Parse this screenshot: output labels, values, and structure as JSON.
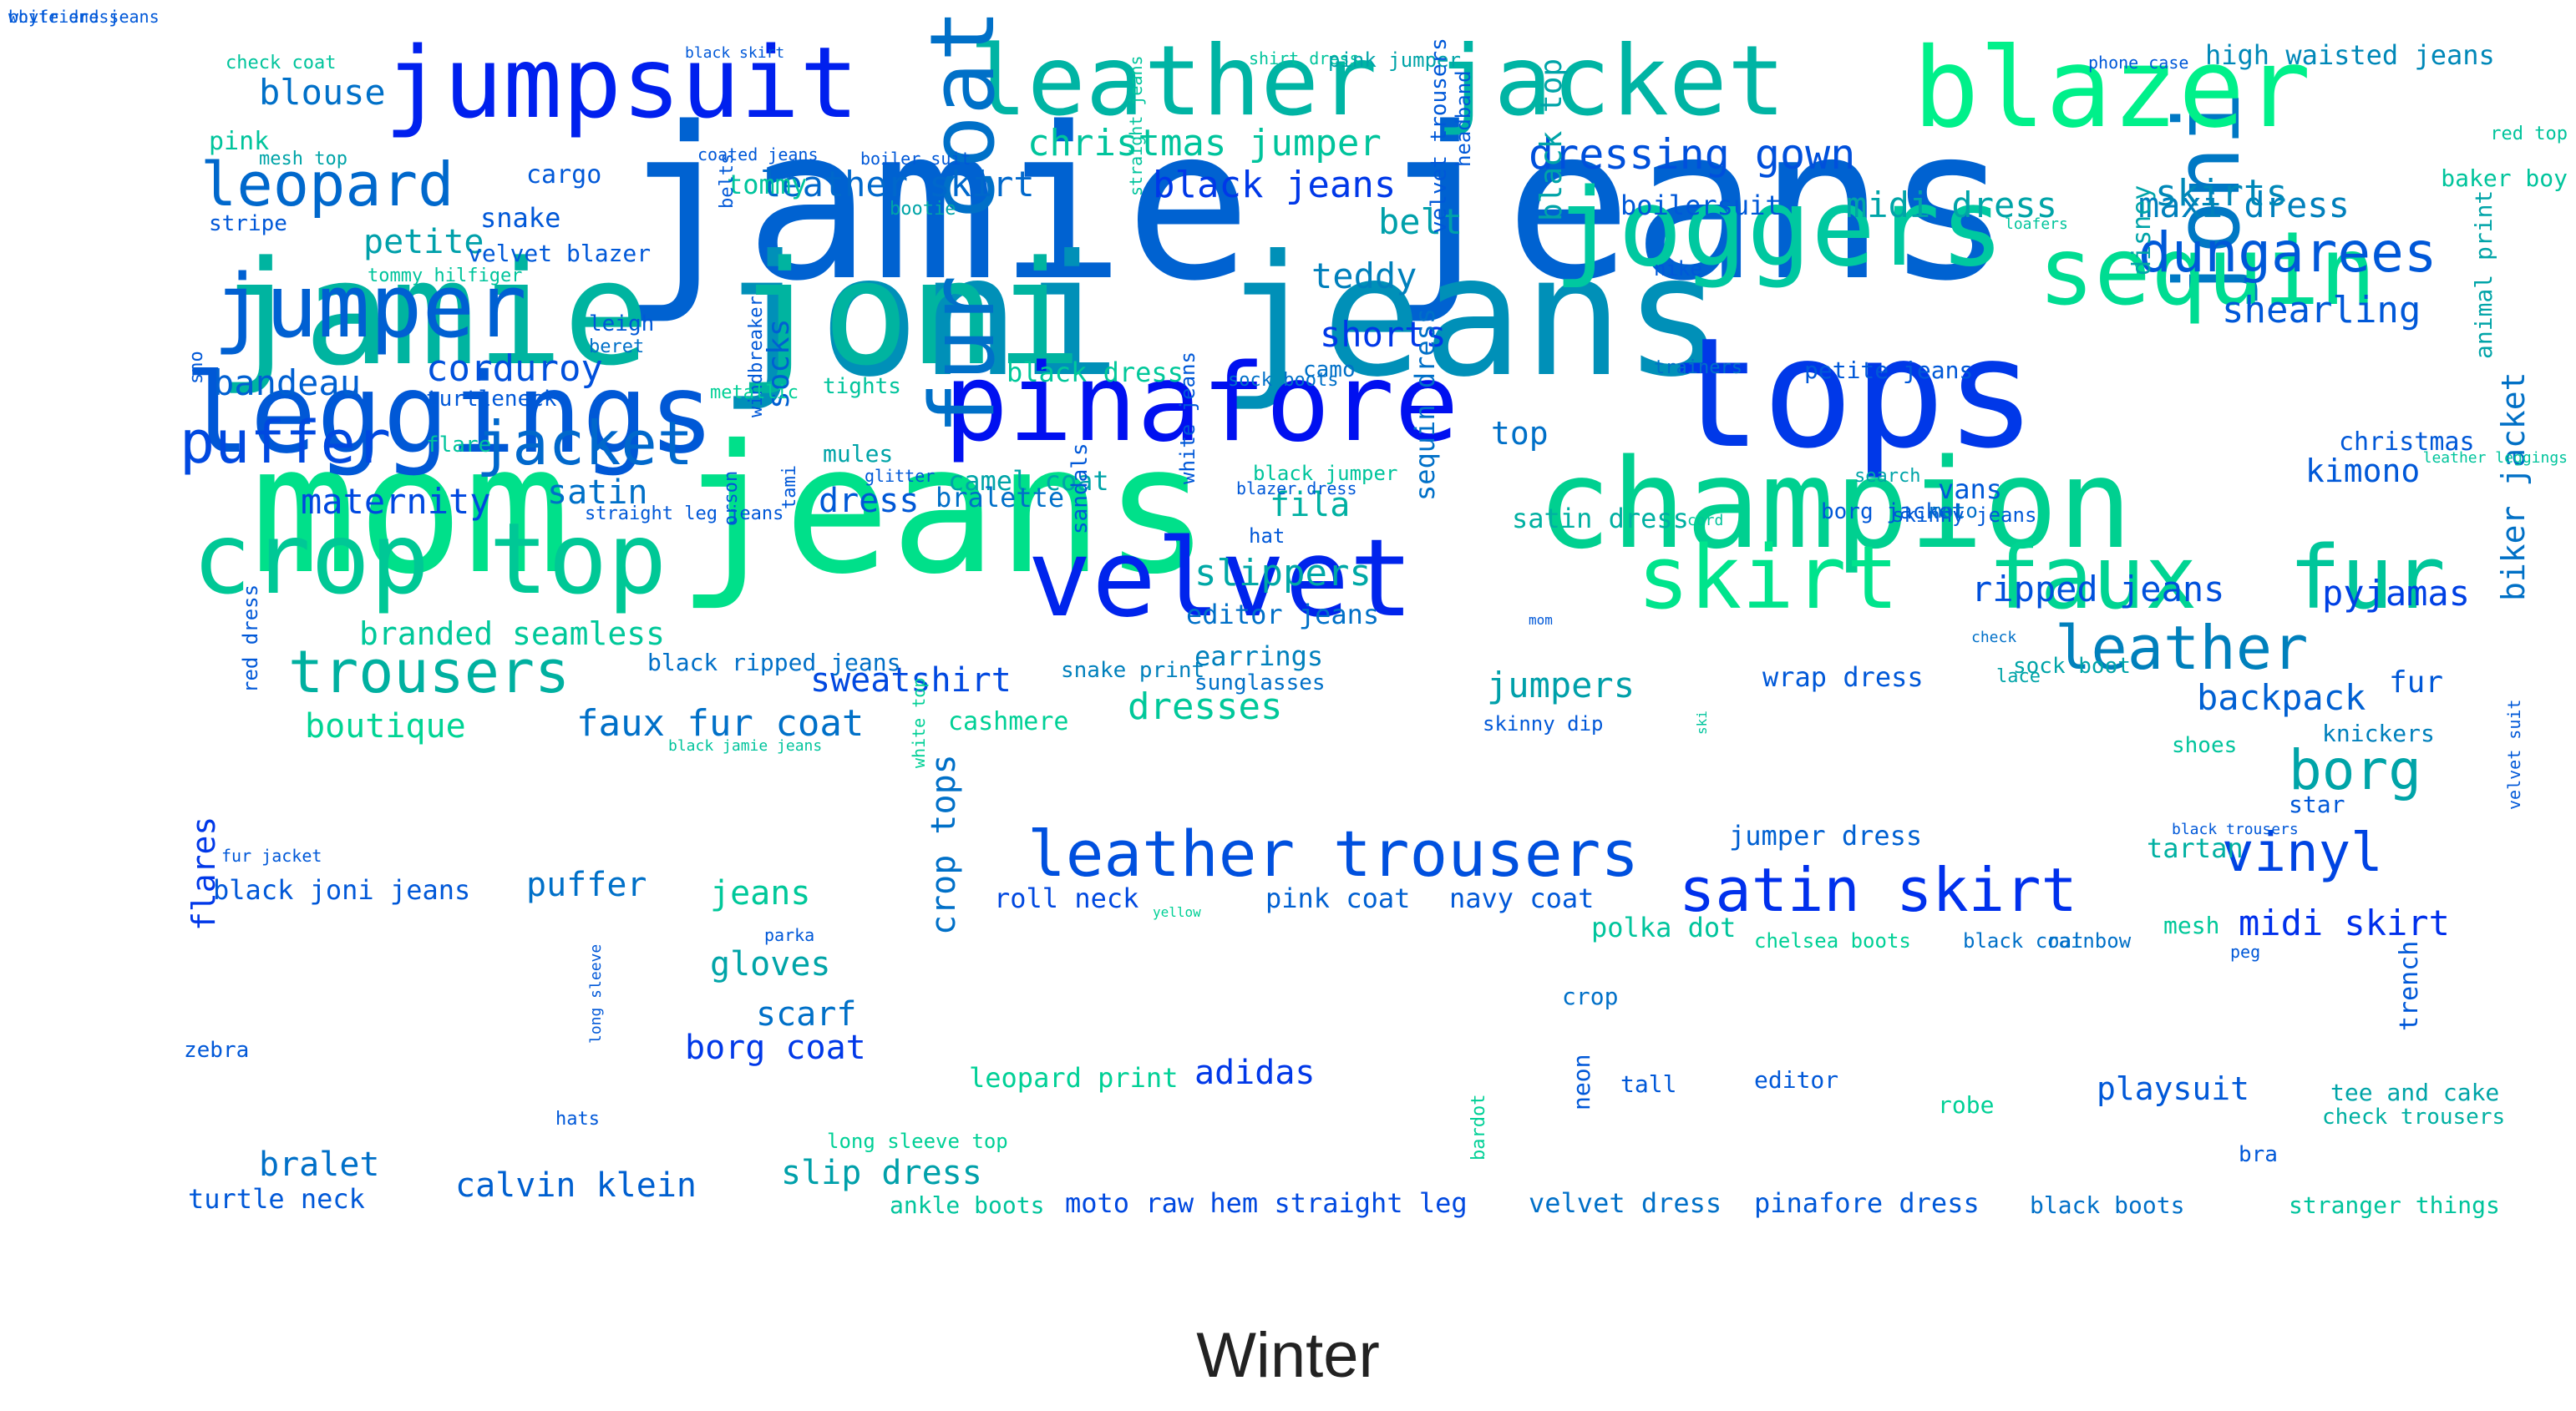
{
  "caption": "Winter",
  "words": [
    {
      "text": "jamie jeans",
      "color": "#0062d1"
    },
    {
      "text": "mom jeans",
      "color": "#00e08a"
    },
    {
      "text": "joni jeans",
      "color": "#0090b8"
    },
    {
      "text": "jamie joni",
      "color": "#00b4a0"
    },
    {
      "text": "tops",
      "color": "#0038e8"
    },
    {
      "text": "champion",
      "color": "#00d090"
    },
    {
      "text": "pinafore",
      "color": "#0010f0"
    },
    {
      "text": "leggings",
      "color": "#0058d6"
    },
    {
      "text": "velvet",
      "color": "#0024ec"
    },
    {
      "text": "crop top",
      "color": "#00c896"
    },
    {
      "text": "joni",
      "color": "#0078c4"
    },
    {
      "text": "blazer",
      "color": "#00f08a"
    },
    {
      "text": "joggers",
      "color": "#00c8a0"
    },
    {
      "text": "sequin",
      "color": "#00dc92"
    },
    {
      "text": "leather jacket",
      "color": "#00b4a4"
    },
    {
      "text": "jumpsuit",
      "color": "#0020ee"
    },
    {
      "text": "fur coat",
      "color": "#0070c8"
    },
    {
      "text": "skirt",
      "color": "#00e48c"
    },
    {
      "text": "faux",
      "color": "#00d492"
    },
    {
      "text": "fur",
      "color": "#00c69a"
    },
    {
      "text": "leather trousers",
      "color": "#0050de"
    },
    {
      "text": "jumper",
      "color": "#0060d2"
    },
    {
      "text": "satin skirt",
      "color": "#0030ec"
    },
    {
      "text": "leopard",
      "color": "#0068cc"
    },
    {
      "text": "leather",
      "color": "#0080bc"
    },
    {
      "text": "trousers",
      "color": "#00b0a0"
    },
    {
      "text": "jacket",
      "color": "#0068cc"
    },
    {
      "text": "puffer",
      "color": "#0048e0"
    },
    {
      "text": "dungarees",
      "color": "#0058d8"
    },
    {
      "text": "vinyl",
      "color": "#0044e2"
    },
    {
      "text": "borg",
      "color": "#00a4a8"
    },
    {
      "text": "dressing gown",
      "color": "#0050dc"
    },
    {
      "text": "christmas jumper",
      "color": "#00c49c"
    },
    {
      "text": "midi dress",
      "color": "#00a4a8"
    },
    {
      "text": "maxi dress",
      "color": "#0080bc"
    },
    {
      "text": "high waisted jeans",
      "color": "#0088b8"
    },
    {
      "text": "black jeans",
      "color": "#0038e8"
    },
    {
      "text": "leather skirt",
      "color": "#0068cc"
    },
    {
      "text": "shearling",
      "color": "#0058d8"
    },
    {
      "text": "kimono",
      "color": "#0058d8"
    },
    {
      "text": "skirts",
      "color": "#0088b8"
    },
    {
      "text": "ripped jeans",
      "color": "#0050dc"
    },
    {
      "text": "pyjamas",
      "color": "#0040e4"
    },
    {
      "text": "backpack",
      "color": "#0060d2"
    },
    {
      "text": "midi skirt",
      "color": "#0030ec"
    },
    {
      "text": "biker jacket",
      "color": "#0070c6"
    },
    {
      "text": "corduroy",
      "color": "#0050dc"
    },
    {
      "text": "maternity",
      "color": "#0048e0"
    },
    {
      "text": "bandeau",
      "color": "#0060d2"
    },
    {
      "text": "blouse",
      "color": "#0070c8"
    },
    {
      "text": "petite",
      "color": "#00a0aa"
    },
    {
      "text": "branded seamless",
      "color": "#00c89a"
    },
    {
      "text": "boutique",
      "color": "#00d494"
    },
    {
      "text": "faux fur coat",
      "color": "#0070c8"
    },
    {
      "text": "sweatshirt",
      "color": "#0048e0"
    },
    {
      "text": "dresses",
      "color": "#00c89a"
    },
    {
      "text": "jumpers",
      "color": "#00a0aa"
    },
    {
      "text": "slippers",
      "color": "#00a8a6"
    },
    {
      "text": "shorts",
      "color": "#0038e8"
    },
    {
      "text": "teddy",
      "color": "#0080bc"
    },
    {
      "text": "belt",
      "color": "#00a0aa"
    },
    {
      "text": "satin",
      "color": "#0070c8"
    },
    {
      "text": "dress",
      "color": "#0058d6"
    },
    {
      "text": "jeans",
      "color": "#00c89a"
    },
    {
      "text": "puffer",
      "color": "#0070c8"
    },
    {
      "text": "gloves",
      "color": "#00a4a8"
    },
    {
      "text": "scarf",
      "color": "#0070c8"
    },
    {
      "text": "borg coat",
      "color": "#0038e8"
    },
    {
      "text": "crop tops",
      "color": "#0070c8"
    },
    {
      "text": "adidas",
      "color": "#0038e8"
    },
    {
      "text": "playsuit",
      "color": "#0058d8"
    },
    {
      "text": "calvin klein",
      "color": "#0060d0"
    },
    {
      "text": "slip dress",
      "color": "#00a0aa"
    },
    {
      "text": "bralet",
      "color": "#0070c8"
    },
    {
      "text": "turtle neck",
      "color": "#0058d8"
    },
    {
      "text": "black joni jeans",
      "color": "#0058d8"
    },
    {
      "text": "flares",
      "color": "#0038e8"
    },
    {
      "text": "roll neck",
      "color": "#0048e0"
    },
    {
      "text": "pink coat",
      "color": "#0060d2"
    },
    {
      "text": "navy coat",
      "color": "#0058d8"
    },
    {
      "text": "polka dot",
      "color": "#00c49c"
    },
    {
      "text": "camel coat",
      "color": "#00a4a8"
    },
    {
      "text": "black dress",
      "color": "#00c89a"
    },
    {
      "text": "fila",
      "color": "#00b0a2"
    },
    {
      "text": "top",
      "color": "#0070c8"
    },
    {
      "text": "socks",
      "color": "#0060d2"
    },
    {
      "text": "bralette",
      "color": "#0070c8"
    },
    {
      "text": "sequin dress",
      "color": "#0070c8"
    },
    {
      "text": "satin dress",
      "color": "#00b0a2"
    },
    {
      "text": "wrap dress",
      "color": "#0058d8"
    },
    {
      "text": "fur",
      "color": "#0058d8"
    },
    {
      "text": "jumper dress",
      "color": "#0060d2"
    },
    {
      "text": "cashmere",
      "color": "#00d096"
    },
    {
      "text": "earrings",
      "color": "#0080bc"
    },
    {
      "text": "sunglasses",
      "color": "#0070c8"
    },
    {
      "text": "editor jeans",
      "color": "#0070c8"
    },
    {
      "text": "snake print",
      "color": "#0080bc"
    },
    {
      "text": "skinny dip",
      "color": "#0058d8"
    },
    {
      "text": "christmas",
      "color": "#0058d8"
    },
    {
      "text": "knickers",
      "color": "#0080bc"
    },
    {
      "text": "shoes",
      "color": "#00c49c"
    },
    {
      "text": "star",
      "color": "#0058d8"
    },
    {
      "text": "tartan",
      "color": "#00b0a2"
    },
    {
      "text": "mesh",
      "color": "#00c89a"
    },
    {
      "text": "trench",
      "color": "#0058d8"
    },
    {
      "text": "tee and cake",
      "color": "#00a4a8"
    },
    {
      "text": "check trousers",
      "color": "#00b0a2"
    },
    {
      "text": "stranger things",
      "color": "#00c49c"
    },
    {
      "text": "black boots",
      "color": "#0070c8"
    },
    {
      "text": "pinafore dress",
      "color": "#0058d8"
    },
    {
      "text": "velvet dress",
      "color": "#0070c8"
    },
    {
      "text": "moto raw hem straight leg",
      "color": "#0048e0"
    },
    {
      "text": "ankle boots",
      "color": "#00c49c"
    },
    {
      "text": "long sleeve top",
      "color": "#00d096"
    },
    {
      "text": "leopard print",
      "color": "#00d096"
    },
    {
      "text": "robe",
      "color": "#00d096"
    },
    {
      "text": "editor",
      "color": "#0058d8"
    },
    {
      "text": "tall",
      "color": "#0058d8"
    },
    {
      "text": "crop",
      "color": "#0070c8"
    },
    {
      "text": "chelsea boots",
      "color": "#00d096"
    },
    {
      "text": "black coat",
      "color": "#0070c8"
    },
    {
      "text": "rainbow",
      "color": "#0070c8"
    },
    {
      "text": "neon",
      "color": "#0058d8"
    },
    {
      "text": "bardot",
      "color": "#00d096"
    },
    {
      "text": "bra",
      "color": "#0058d8"
    },
    {
      "text": "peg",
      "color": "#0058d8"
    },
    {
      "text": "zebra",
      "color": "#0058d8"
    },
    {
      "text": "hats",
      "color": "#0058d8"
    },
    {
      "text": "long sleeve",
      "color": "#0058d8"
    },
    {
      "text": "parka",
      "color": "#0058d8"
    },
    {
      "text": "yellow",
      "color": "#00d096"
    },
    {
      "text": "white top",
      "color": "#00d096"
    },
    {
      "text": "fur jacket",
      "color": "#0058d8"
    },
    {
      "text": "red dress",
      "color": "#0058d8"
    },
    {
      "text": "black jamie jeans",
      "color": "#00c49c"
    },
    {
      "text": "black ripped jeans",
      "color": "#0070c8"
    },
    {
      "text": "orson",
      "color": "#0058d8"
    },
    {
      "text": "tami",
      "color": "#0058d8"
    },
    {
      "text": "straight leg jeans",
      "color": "#0058d8"
    },
    {
      "text": "windbreaker",
      "color": "#0058d8"
    },
    {
      "text": "mules",
      "color": "#00a4a8"
    },
    {
      "text": "glitter",
      "color": "#0058d8"
    },
    {
      "text": "metallic",
      "color": "#00d096"
    },
    {
      "text": "tights",
      "color": "#00c49c"
    },
    {
      "text": "leigh",
      "color": "#0058d8"
    },
    {
      "text": "beret",
      "color": "#0070c8"
    },
    {
      "text": "turtleneck",
      "color": "#0058d8"
    },
    {
      "text": "flare",
      "color": "#00c49c"
    },
    {
      "text": "sno",
      "color": "#0058d8"
    },
    {
      "text": "tommy hilfiger",
      "color": "#00c49c"
    },
    {
      "text": "velvet blazer",
      "color": "#0058d8"
    },
    {
      "text": "stripe",
      "color": "#0058d8"
    },
    {
      "text": "pink",
      "color": "#00c49c"
    },
    {
      "text": "mesh top",
      "color": "#00a4a8"
    },
    {
      "text": "check coat",
      "color": "#00c49c"
    },
    {
      "text": "black skirt",
      "color": "#0058d8"
    },
    {
      "text": "cargo",
      "color": "#0058d8"
    },
    {
      "text": "snake",
      "color": "#0058d8"
    },
    {
      "text": "coated jeans",
      "color": "#0058d8"
    },
    {
      "text": "tommy",
      "color": "#00c49c"
    },
    {
      "text": "boiler suit",
      "color": "#0058d8"
    },
    {
      "text": "bootie",
      "color": "#00a4a8"
    },
    {
      "text": "belts",
      "color": "#0058d8"
    },
    {
      "text": "straight jeans",
      "color": "#00c49c"
    },
    {
      "text": "shirt dress",
      "color": "#00c49c"
    },
    {
      "text": "pink jumper",
      "color": "#00a4a8"
    },
    {
      "text": "headband",
      "color": "#0058d8"
    },
    {
      "text": "velvet trousers",
      "color": "#0058d8"
    },
    {
      "text": "black top",
      "color": "#00a4a8"
    },
    {
      "text": "sock boots",
      "color": "#0070c8"
    },
    {
      "text": "camo",
      "color": "#0070c8"
    },
    {
      "text": "nike",
      "color": "#0058d8"
    },
    {
      "text": "boilersuit",
      "color": "#0058d8"
    },
    {
      "text": "trainers",
      "color": "#0070c8"
    },
    {
      "text": "petite jeans",
      "color": "#0058d8"
    },
    {
      "text": "black jumper",
      "color": "#00c49c"
    },
    {
      "text": "blazer dress",
      "color": "#0058d8"
    },
    {
      "text": "white jeans",
      "color": "#0058d8"
    },
    {
      "text": "sandals",
      "color": "#0058d8"
    },
    {
      "text": "hat",
      "color": "#0058d8"
    },
    {
      "text": "cord",
      "color": "#00c49c"
    },
    {
      "text": "borg jacket",
      "color": "#0058d8"
    },
    {
      "text": "skinny jeans",
      "color": "#0058d8"
    },
    {
      "text": "moto",
      "color": "#0070c8"
    },
    {
      "text": "vans",
      "color": "#0058d8"
    },
    {
      "text": "search",
      "color": "#00a4a8"
    },
    {
      "text": "disney",
      "color": "#00a4a8"
    },
    {
      "text": "leather leggings",
      "color": "#00c49c"
    },
    {
      "text": "animal print",
      "color": "#00a4a8"
    },
    {
      "text": "phone case",
      "color": "#0058d8"
    },
    {
      "text": "red top",
      "color": "#00c49c"
    },
    {
      "text": "baker boy",
      "color": "#00c49c"
    },
    {
      "text": "loafers",
      "color": "#00c49c"
    },
    {
      "text": "check",
      "color": "#0070c8"
    },
    {
      "text": "sock boot",
      "color": "#00a4a8"
    },
    {
      "text": "lace",
      "color": "#00a4a8"
    },
    {
      "text": "mom",
      "color": "#0058d8"
    },
    {
      "text": "ski",
      "color": "#00c49c"
    },
    {
      "text": "black trousers",
      "color": "#0058d8"
    },
    {
      "text": "velvet suit",
      "color": "#0058d8"
    },
    {
      "text": "white dress",
      "color": "#0058d8"
    },
    {
      "text": "boyfriend jeans",
      "color": "#0058d8"
    }
  ]
}
